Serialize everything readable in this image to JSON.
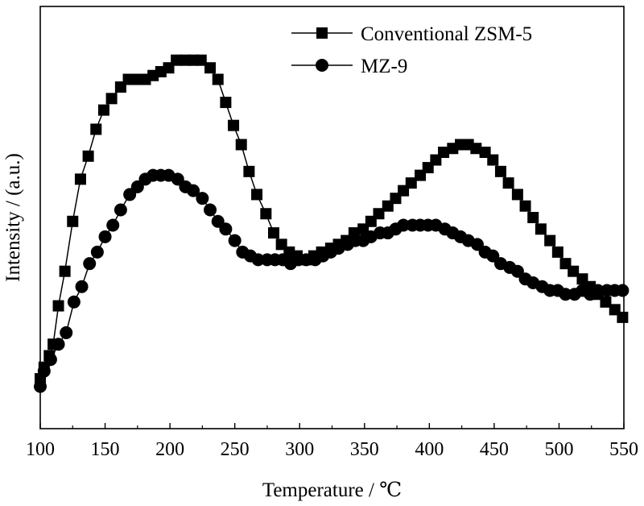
{
  "chart_data": {
    "type": "line",
    "xlabel": "Temperature / ℃",
    "ylabel": "Intensity / (a.u.)",
    "xlim": [
      100,
      550
    ],
    "ylim": [
      0,
      1.1
    ],
    "xticks": [
      100,
      150,
      200,
      250,
      300,
      350,
      400,
      450,
      500,
      550
    ],
    "yticks_shown": false,
    "grid": false,
    "legend_position": "top-right",
    "series": [
      {
        "name": "Conventional ZSM-5",
        "marker": "square",
        "color": "#000000",
        "points": [
          [
            100,
            0.13
          ],
          [
            103,
            0.16
          ],
          [
            107,
            0.19
          ],
          [
            110,
            0.22
          ],
          [
            114,
            0.32
          ],
          [
            119,
            0.41
          ],
          [
            125,
            0.54
          ],
          [
            131,
            0.65
          ],
          [
            137,
            0.71
          ],
          [
            143,
            0.78
          ],
          [
            149,
            0.83
          ],
          [
            155,
            0.86
          ],
          [
            162,
            0.89
          ],
          [
            168,
            0.91
          ],
          [
            175,
            0.91
          ],
          [
            181,
            0.91
          ],
          [
            187,
            0.92
          ],
          [
            193,
            0.93
          ],
          [
            199,
            0.94
          ],
          [
            205,
            0.96
          ],
          [
            212,
            0.96
          ],
          [
            218,
            0.96
          ],
          [
            224,
            0.96
          ],
          [
            231,
            0.94
          ],
          [
            237,
            0.91
          ],
          [
            243,
            0.85
          ],
          [
            249,
            0.79
          ],
          [
            255,
            0.74
          ],
          [
            261,
            0.67
          ],
          [
            267,
            0.61
          ],
          [
            274,
            0.56
          ],
          [
            280,
            0.51
          ],
          [
            286,
            0.48
          ],
          [
            292,
            0.46
          ],
          [
            298,
            0.45
          ],
          [
            305,
            0.44
          ],
          [
            311,
            0.45
          ],
          [
            317,
            0.46
          ],
          [
            324,
            0.47
          ],
          [
            330,
            0.48
          ],
          [
            336,
            0.49
          ],
          [
            342,
            0.51
          ],
          [
            349,
            0.52
          ],
          [
            355,
            0.54
          ],
          [
            361,
            0.56
          ],
          [
            368,
            0.58
          ],
          [
            374,
            0.6
          ],
          [
            380,
            0.62
          ],
          [
            386,
            0.64
          ],
          [
            393,
            0.66
          ],
          [
            399,
            0.68
          ],
          [
            405,
            0.7
          ],
          [
            411,
            0.72
          ],
          [
            418,
            0.73
          ],
          [
            424,
            0.74
          ],
          [
            430,
            0.74
          ],
          [
            436,
            0.73
          ],
          [
            443,
            0.72
          ],
          [
            449,
            0.7
          ],
          [
            455,
            0.67
          ],
          [
            461,
            0.64
          ],
          [
            468,
            0.61
          ],
          [
            474,
            0.58
          ],
          [
            480,
            0.55
          ],
          [
            486,
            0.52
          ],
          [
            493,
            0.49
          ],
          [
            499,
            0.46
          ],
          [
            505,
            0.43
          ],
          [
            511,
            0.41
          ],
          [
            518,
            0.39
          ],
          [
            524,
            0.37
          ],
          [
            530,
            0.35
          ],
          [
            536,
            0.33
          ],
          [
            543,
            0.31
          ],
          [
            549,
            0.29
          ]
        ]
      },
      {
        "name": "MZ-9",
        "marker": "circle",
        "color": "#000000",
        "points": [
          [
            100,
            0.11
          ],
          [
            103,
            0.15
          ],
          [
            108,
            0.18
          ],
          [
            114,
            0.22
          ],
          [
            120,
            0.25
          ],
          [
            126,
            0.33
          ],
          [
            132,
            0.37
          ],
          [
            138,
            0.43
          ],
          [
            144,
            0.46
          ],
          [
            150,
            0.5
          ],
          [
            156,
            0.53
          ],
          [
            162,
            0.57
          ],
          [
            169,
            0.61
          ],
          [
            175,
            0.63
          ],
          [
            181,
            0.65
          ],
          [
            187,
            0.66
          ],
          [
            193,
            0.66
          ],
          [
            199,
            0.66
          ],
          [
            206,
            0.65
          ],
          [
            212,
            0.63
          ],
          [
            218,
            0.62
          ],
          [
            225,
            0.6
          ],
          [
            231,
            0.57
          ],
          [
            237,
            0.54
          ],
          [
            243,
            0.52
          ],
          [
            250,
            0.49
          ],
          [
            256,
            0.46
          ],
          [
            262,
            0.45
          ],
          [
            268,
            0.44
          ],
          [
            275,
            0.44
          ],
          [
            281,
            0.44
          ],
          [
            287,
            0.44
          ],
          [
            293,
            0.43
          ],
          [
            299,
            0.44
          ],
          [
            305,
            0.44
          ],
          [
            312,
            0.44
          ],
          [
            318,
            0.45
          ],
          [
            324,
            0.46
          ],
          [
            330,
            0.47
          ],
          [
            337,
            0.48
          ],
          [
            343,
            0.49
          ],
          [
            349,
            0.49
          ],
          [
            355,
            0.5
          ],
          [
            362,
            0.51
          ],
          [
            368,
            0.51
          ],
          [
            374,
            0.52
          ],
          [
            380,
            0.53
          ],
          [
            387,
            0.53
          ],
          [
            393,
            0.53
          ],
          [
            399,
            0.53
          ],
          [
            405,
            0.53
          ],
          [
            412,
            0.52
          ],
          [
            418,
            0.51
          ],
          [
            424,
            0.5
          ],
          [
            430,
            0.49
          ],
          [
            437,
            0.48
          ],
          [
            443,
            0.46
          ],
          [
            449,
            0.45
          ],
          [
            455,
            0.43
          ],
          [
            462,
            0.42
          ],
          [
            468,
            0.41
          ],
          [
            474,
            0.39
          ],
          [
            480,
            0.38
          ],
          [
            487,
            0.37
          ],
          [
            493,
            0.36
          ],
          [
            499,
            0.36
          ],
          [
            505,
            0.35
          ],
          [
            512,
            0.35
          ],
          [
            518,
            0.36
          ],
          [
            524,
            0.35
          ],
          [
            530,
            0.36
          ],
          [
            537,
            0.36
          ],
          [
            543,
            0.36
          ],
          [
            549,
            0.36
          ]
        ]
      }
    ]
  }
}
